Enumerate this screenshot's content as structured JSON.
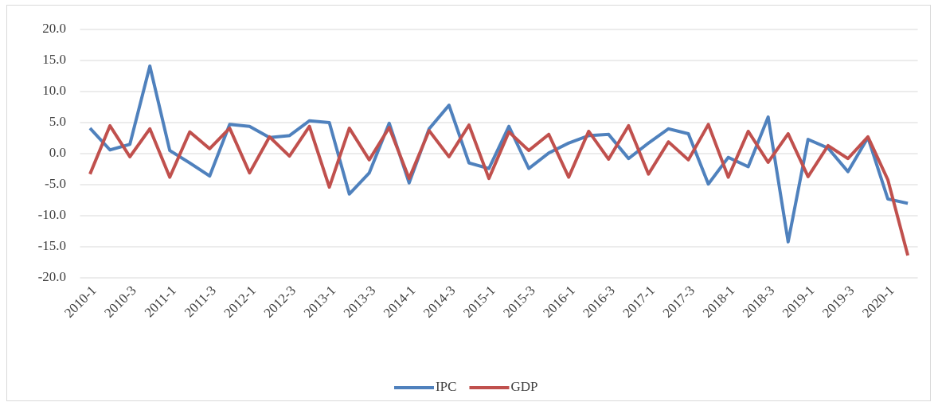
{
  "chart_data": {
    "type": "line",
    "categories": [
      "2010-1",
      null,
      "2010-3",
      null,
      "2011-1",
      null,
      "2011-3",
      null,
      "2012-1",
      null,
      "2012-3",
      null,
      "2013-1",
      null,
      "2013-3",
      null,
      "2014-1",
      null,
      "2014-3",
      null,
      "2015-1",
      null,
      "2015-3",
      null,
      "2016-1",
      null,
      "2016-3",
      null,
      "2017-1",
      null,
      "2017-3",
      null,
      "2018-1",
      null,
      "2018-3",
      null,
      "2019-1",
      null,
      "2019-3",
      null,
      "2020-1",
      null
    ],
    "series": [
      {
        "name": "IPC",
        "color": "#4f81bd",
        "values": [
          4.1,
          0.6,
          1.5,
          14.1,
          0.5,
          -1.5,
          -3.6,
          4.7,
          4.4,
          2.6,
          2.9,
          5.3,
          5.0,
          -6.5,
          -3.1,
          4.9,
          -4.7,
          4.0,
          7.8,
          -1.5,
          -2.4,
          4.4,
          -2.4,
          0.1,
          1.7,
          2.9,
          3.1,
          -0.8,
          1.7,
          4.0,
          3.2,
          -4.9,
          -0.6,
          -2.1,
          5.9,
          -14.2,
          2.3,
          0.9,
          -2.9,
          2.6,
          -7.3,
          -8.0
        ]
      },
      {
        "name": "GDP",
        "color": "#c0504d",
        "values": [
          -3.3,
          4.5,
          -0.5,
          4.0,
          -3.8,
          3.5,
          0.8,
          4.1,
          -3.1,
          2.7,
          -0.4,
          4.4,
          -5.4,
          4.1,
          -1.0,
          4.2,
          -4.0,
          3.7,
          -0.5,
          4.6,
          -4.0,
          3.5,
          0.5,
          3.1,
          -3.8,
          3.6,
          -0.9,
          4.5,
          -3.3,
          1.9,
          -1.0,
          4.7,
          -3.8,
          3.6,
          -1.4,
          3.2,
          -3.7,
          1.3,
          -0.8,
          2.7,
          -4.2,
          -16.4
        ]
      }
    ],
    "ylim": [
      -20,
      20
    ],
    "yticks": [
      {
        "value": -20,
        "label": "-20.0"
      },
      {
        "value": -15,
        "label": "-15.0"
      },
      {
        "value": -10,
        "label": "-10.0"
      },
      {
        "value": -5,
        "label": "-5.0"
      },
      {
        "value": 0,
        "label": "0.0"
      },
      {
        "value": 5,
        "label": "5.0"
      },
      {
        "value": 10,
        "label": "10.0"
      },
      {
        "value": 15,
        "label": "15.0"
      },
      {
        "value": 20,
        "label": "20.0"
      }
    ],
    "grid": true,
    "legend": "bottom"
  }
}
